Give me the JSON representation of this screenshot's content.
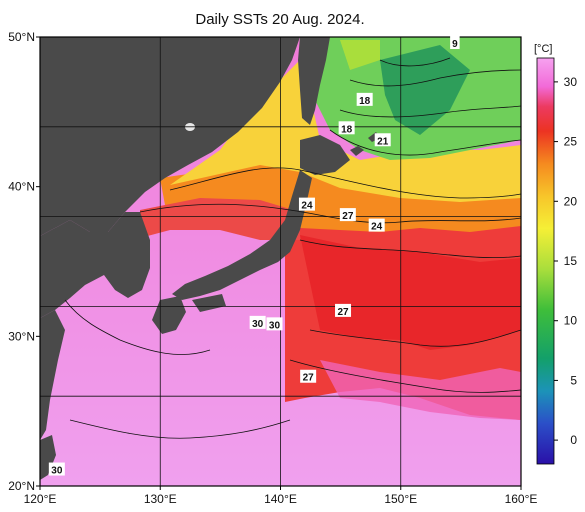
{
  "title": "Daily SSTs 20 Aug. 2024.",
  "lon_ticks": [
    "120°E",
    "130°E",
    "140°E",
    "150°E",
    "160°E"
  ],
  "lat_ticks": [
    "20°N",
    "30°N",
    "40°N",
    "50°N"
  ],
  "colorbar": {
    "unit": "[°C]",
    "ticks": [
      "0",
      "5",
      "10",
      "15",
      "20",
      "25",
      "30"
    ],
    "range": [
      -2,
      32
    ]
  },
  "contour_labels": [
    {
      "text": "9",
      "lon": 154.5,
      "lat": 49.6
    },
    {
      "text": "18",
      "lon": 147.0,
      "lat": 45.8
    },
    {
      "text": "18",
      "lon": 145.5,
      "lat": 43.9
    },
    {
      "text": "21",
      "lon": 148.5,
      "lat": 43.1
    },
    {
      "text": "24",
      "lon": 142.2,
      "lat": 38.8
    },
    {
      "text": "27",
      "lon": 145.6,
      "lat": 38.1
    },
    {
      "text": "24",
      "lon": 148.0,
      "lat": 37.4
    },
    {
      "text": "27",
      "lon": 145.2,
      "lat": 31.7
    },
    {
      "text": "30",
      "lon": 138.1,
      "lat": 30.9
    },
    {
      "text": "30",
      "lon": 139.5,
      "lat": 30.8
    },
    {
      "text": "27",
      "lon": 142.3,
      "lat": 27.3
    },
    {
      "text": "30",
      "lon": 121.4,
      "lat": 21.1
    }
  ],
  "colors": {
    "land": "#4a4a4a",
    "sea_warm": "#ee88e6",
    "sea_hot": "#f26ad8",
    "kuroshio": "#ec3828",
    "mid": "#f5a623",
    "cool": "#f7dd3b",
    "cold": "#5fd35a",
    "frame": "#000000"
  }
}
